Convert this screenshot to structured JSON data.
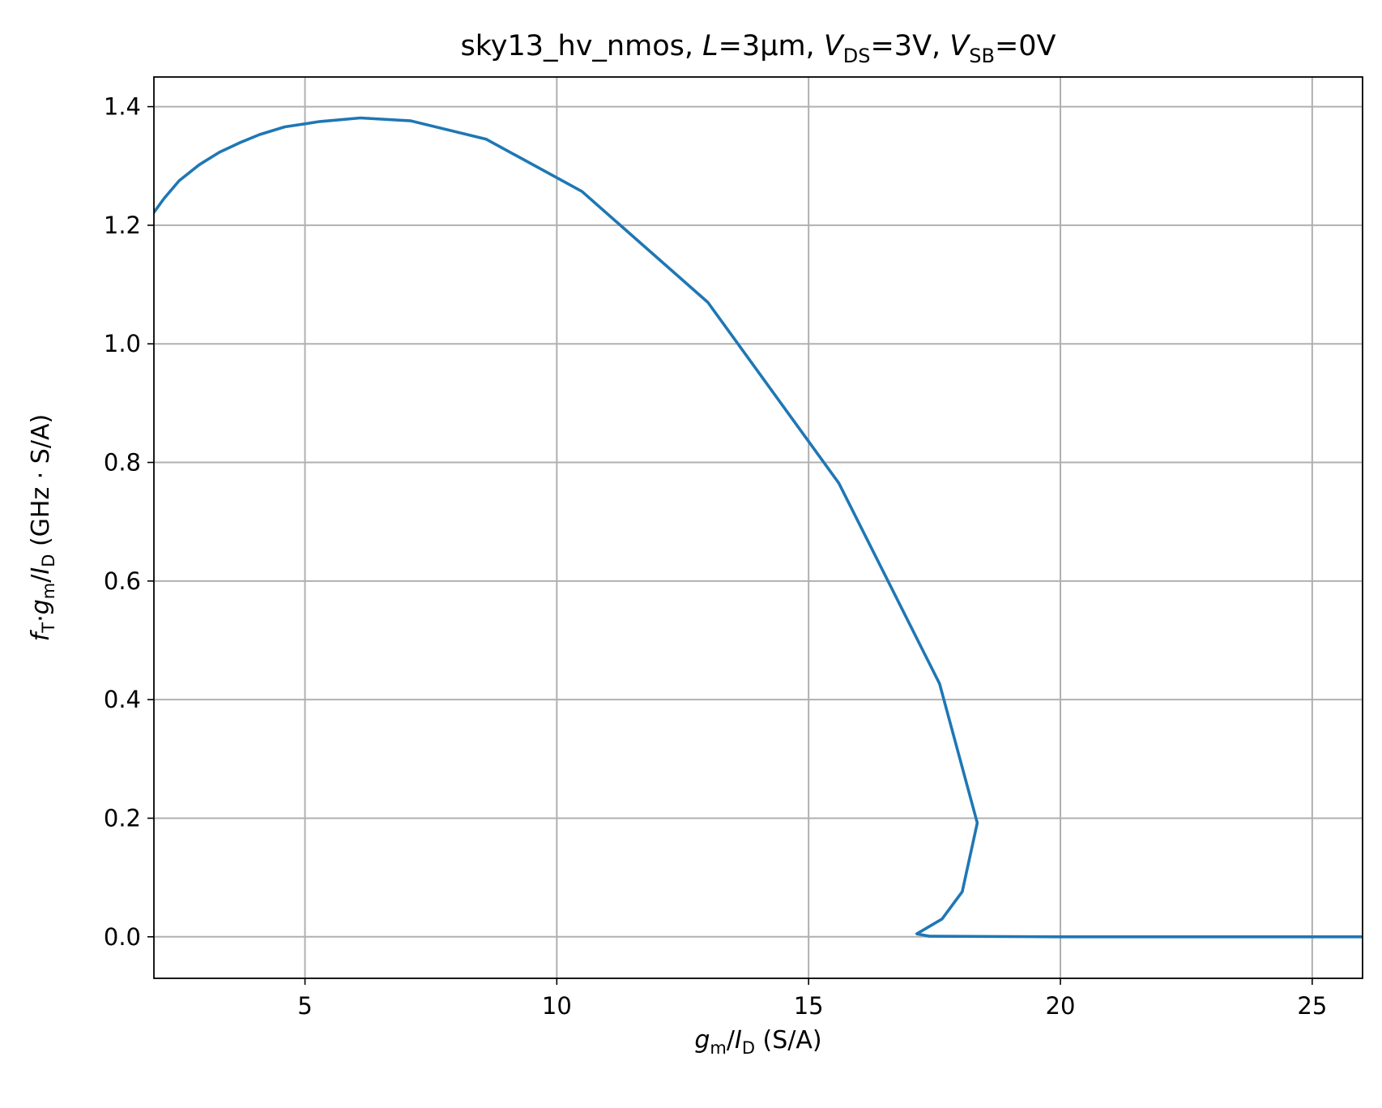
{
  "chart_data": {
    "type": "line",
    "title": {
      "prefix": "sky13_hv_nmos, ",
      "L_symbol": "L",
      "L_value": "=3μm, ",
      "vds_symbol": "V",
      "vds_sub": "DS",
      "vds_value": "=3V, ",
      "vsb_symbol": "V",
      "vsb_sub": "SB",
      "vsb_value": "=0V"
    },
    "xlabel": {
      "g": "g",
      "g_sub": "m",
      "slash": "/",
      "i": "I",
      "i_sub": "D",
      "unit": " (S/A)"
    },
    "ylabel": {
      "f": "f",
      "f_sub": "T",
      "dot": "·",
      "g": "g",
      "g_sub": "m",
      "slash": "/",
      "i": "I",
      "i_sub": "D",
      "unit": " (GHz · S/A)"
    },
    "xlim": [
      2,
      26
    ],
    "ylim": [
      -0.07,
      1.45
    ],
    "xticks": [
      {
        "value": 5,
        "label": "5"
      },
      {
        "value": 10,
        "label": "10"
      },
      {
        "value": 15,
        "label": "15"
      },
      {
        "value": 20,
        "label": "20"
      },
      {
        "value": 25,
        "label": "25"
      }
    ],
    "yticks": [
      {
        "value": 0.0,
        "label": "0.0"
      },
      {
        "value": 0.2,
        "label": "0.2"
      },
      {
        "value": 0.4,
        "label": "0.4"
      },
      {
        "value": 0.6,
        "label": "0.6"
      },
      {
        "value": 0.8,
        "label": "0.8"
      },
      {
        "value": 1.0,
        "label": "1.0"
      },
      {
        "value": 1.2,
        "label": "1.2"
      },
      {
        "value": 1.4,
        "label": "1.4"
      }
    ],
    "grid": true,
    "series": [
      {
        "color": "#1f77b4",
        "x": [
          1.9,
          2.2,
          2.5,
          2.9,
          3.3,
          3.7,
          4.1,
          4.6,
          5.3,
          6.1,
          7.1,
          8.6,
          10.5,
          13.0,
          15.6,
          17.6,
          18.35,
          18.05,
          17.65,
          17.15,
          17.4,
          20.0,
          26.0
        ],
        "y": [
          1.21,
          1.245,
          1.275,
          1.302,
          1.323,
          1.339,
          1.353,
          1.366,
          1.375,
          1.381,
          1.376,
          1.345,
          1.257,
          1.07,
          0.765,
          0.427,
          0.192,
          0.076,
          0.03,
          0.005,
          0.001,
          0.0,
          0.0
        ]
      }
    ]
  }
}
